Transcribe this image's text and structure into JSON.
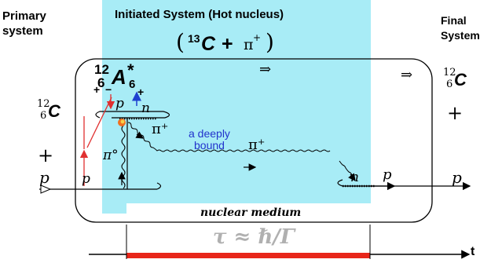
{
  "header": {
    "primary_system": "Primary\nsystem",
    "initiated_system": "Initiated System (Hot nucleus)",
    "final_system": "Final\nSystem"
  },
  "formula": {
    "open": "(",
    "mass": "13",
    "element": "C",
    "plus": "+",
    "pion": "π",
    "charge": "+",
    "close": ")"
  },
  "primary": {
    "c_mass": "12",
    "c_z": "6",
    "c_symbol": "C",
    "plus": "+",
    "proton": "p"
  },
  "hot_nucleus": {
    "mass": "12",
    "z": "6",
    "symbol": "A",
    "star": "*",
    "sub": "6",
    "sub_plus": "+",
    "plus_sign": "+",
    "minus_sign": "−"
  },
  "particles": {
    "p_inner": "p",
    "p_lower": "p",
    "n_upper": "n",
    "pi_plus_1": "π⁺",
    "pi_zero": "π°",
    "pi_plus_2": "π⁺",
    "n_right": "n",
    "p_out": "p",
    "p_final": "p"
  },
  "annotations": {
    "deeply_bound": "a deeply\nbound",
    "nuclear_medium": "nuclear medium",
    "arrow_symbol": "⇒",
    "tau": "τ ≈ ℏ/Γ",
    "time_axis": "t"
  },
  "final": {
    "c_mass": "12",
    "c_z": "6",
    "c_symbol": "C",
    "plus": "+"
  },
  "colors": {
    "cyan_region": "#a8ecf6",
    "red_bar": "#e8261a",
    "red_arrows": "#e03030",
    "blue_arrow": "#1e40d0",
    "deeply_bound_text": "#2233cc",
    "tau_text": "#b0b0b0"
  }
}
